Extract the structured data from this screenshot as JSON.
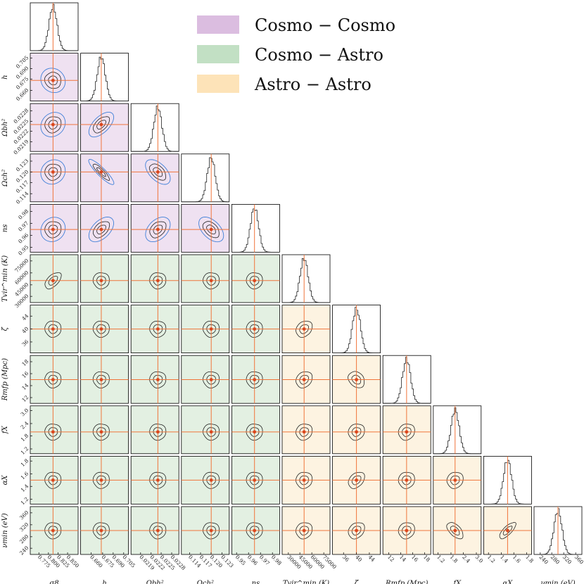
{
  "chart_data": {
    "type": "corner",
    "title": "",
    "parameters": [
      {
        "label": "σ8",
        "ticks": [
          "0.775",
          "0.800",
          "0.825",
          "0.850"
        ],
        "tick_pos": [
          0.18,
          0.38,
          0.58,
          0.78
        ],
        "truth": 0.812
      },
      {
        "label": "h",
        "ticks": [
          "0.660",
          "0.675",
          "0.690",
          "0.705"
        ],
        "tick_pos": [
          0.22,
          0.46,
          0.68,
          0.9
        ],
        "truth": 0.674
      },
      {
        "label": "Ωbh²",
        "ticks": [
          "0.0219",
          "0.0222",
          "0.0225",
          "0.0228"
        ],
        "tick_pos": [
          0.2,
          0.42,
          0.63,
          0.85
        ],
        "truth": 0.0224
      },
      {
        "label": "Ωch²",
        "ticks": [
          "0.114",
          "0.117",
          "0.120",
          "0.123"
        ],
        "tick_pos": [
          0.17,
          0.4,
          0.62,
          0.85
        ],
        "truth": 0.12
      },
      {
        "label": "ns",
        "ticks": [
          "0.95",
          "0.96",
          "0.97",
          "0.98"
        ],
        "tick_pos": [
          0.1,
          0.35,
          0.6,
          0.85
        ],
        "truth": 0.965
      },
      {
        "label": "Tvir^min (K)",
        "ticks": [
          "30000",
          "45000",
          "60000",
          "75000"
        ],
        "tick_pos": [
          0.13,
          0.37,
          0.62,
          0.87
        ],
        "truth": 50000
      },
      {
        "label": "ζ",
        "ticks": [
          "36",
          "40",
          "44"
        ],
        "tick_pos": [
          0.23,
          0.5,
          0.77
        ],
        "truth": 40
      },
      {
        "label": "Rmfp (Mpc)",
        "ticks": [
          "12",
          "14",
          "16",
          "18"
        ],
        "tick_pos": [
          0.12,
          0.37,
          0.62,
          0.87
        ],
        "truth": 15
      },
      {
        "label": "fX",
        "ticks": [
          "1.2",
          "1.8",
          "2.4",
          "3.0"
        ],
        "tick_pos": [
          0.1,
          0.37,
          0.63,
          0.9
        ],
        "truth": 2.0
      },
      {
        "label": "αX",
        "ticks": [
          "1.2",
          "1.4",
          "1.6",
          "1.8"
        ],
        "tick_pos": [
          0.1,
          0.37,
          0.63,
          0.9
        ],
        "truth": 1.5
      },
      {
        "label": "νmin (eV)",
        "ticks": [
          "240",
          "280",
          "320",
          "360"
        ],
        "tick_pos": [
          0.13,
          0.37,
          0.62,
          0.87
        ],
        "truth": 300
      }
    ],
    "legend": {
      "placement": "top-right",
      "entries": [
        {
          "label": "Cosmo − Cosmo",
          "color": "#dbbde0"
        },
        {
          "label": "Cosmo − Astro",
          "color": "#c2e0c4"
        },
        {
          "label": "Astro − Astro",
          "color": "#fde3b8"
        }
      ]
    },
    "truth_color": "#f0743a",
    "marker_color": "#d9471f",
    "prior_contour_color": "#3f7fd8",
    "contour_color": "#222222",
    "background_colors": {
      "cosmo_cosmo": "#efe1f1",
      "cosmo_astro": "#e3f0e2",
      "astro_astro": "#fdf3e1"
    },
    "prior_contours_shown_for": "Cosmo − Cosmo panels",
    "correlations": [
      [
        0,
        1,
        -0.05
      ],
      [
        0,
        2,
        0.1
      ],
      [
        0,
        3,
        0.05
      ],
      [
        0,
        4,
        0.05
      ],
      [
        1,
        2,
        0.55
      ],
      [
        1,
        3,
        -0.9
      ],
      [
        1,
        4,
        0.45
      ],
      [
        2,
        3,
        -0.5
      ],
      [
        2,
        4,
        0.35
      ],
      [
        3,
        4,
        -0.45
      ],
      [
        0,
        5,
        0.55
      ],
      [
        5,
        6,
        0.25
      ],
      [
        5,
        7,
        0.2
      ],
      [
        5,
        8,
        0.1
      ],
      [
        5,
        9,
        0.05
      ],
      [
        5,
        10,
        0.1
      ],
      [
        6,
        7,
        -0.25
      ],
      [
        6,
        8,
        0.1
      ],
      [
        6,
        9,
        0.35
      ],
      [
        6,
        10,
        0.25
      ],
      [
        7,
        8,
        0.1
      ],
      [
        7,
        9,
        0.05
      ],
      [
        7,
        10,
        0.1
      ],
      [
        8,
        9,
        0.1
      ],
      [
        8,
        10,
        -0.55
      ],
      [
        9,
        10,
        0.75
      ]
    ]
  }
}
